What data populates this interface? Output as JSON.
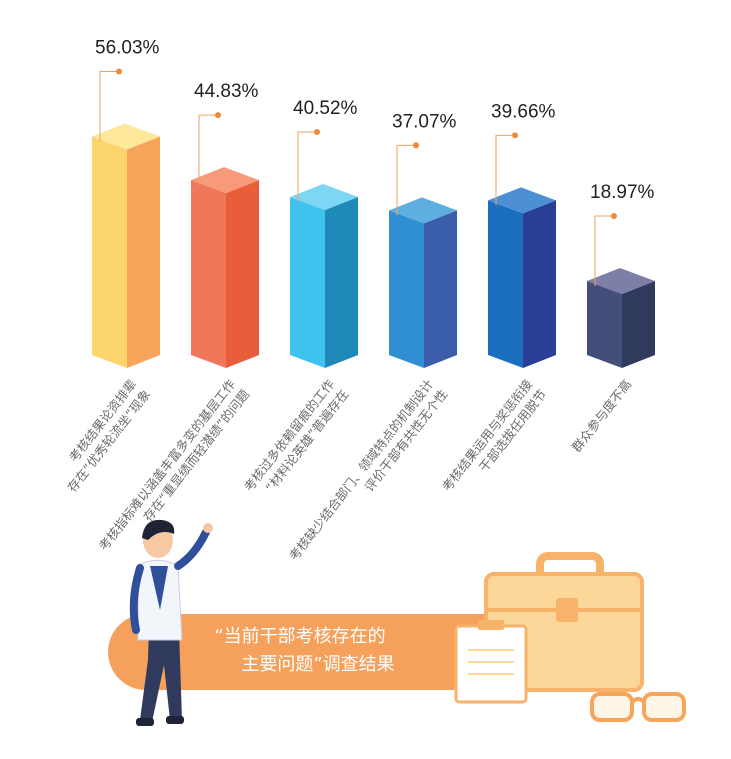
{
  "chart_data": {
    "type": "bar3d",
    "title_lines": [
      "“当前干部考核存在的",
      "主要问题”调查结果"
    ],
    "categories": [
      [
        "考核结果论资排辈",
        "存在“优秀轮流坐”现象"
      ],
      [
        "考核指标难以涵盖丰富多变的基层工作",
        "存在“重显绩而轻潜绩”的问题"
      ],
      [
        "考核过多依赖留痕的工作",
        "“材料论英雄”普遍存在"
      ],
      [
        "考核缺少结合部门、领域特点的机制设计",
        "评价干部有共性无个性"
      ],
      [
        "考核结果运用与奖惩衔接",
        "干部选拔任用脱节"
      ],
      [
        "群众参与度不高"
      ]
    ],
    "values": [
      56.03,
      44.83,
      40.52,
      37.07,
      39.66,
      18.97
    ],
    "value_labels": [
      "56.03%",
      "44.83%",
      "40.52%",
      "37.07%",
      "39.66%",
      "18.97%"
    ],
    "colors": [
      {
        "left": "#fcd46c",
        "right": "#f7a55a",
        "top": "#fde89c"
      },
      {
        "left": "#f1775a",
        "right": "#e95e3a",
        "top": "#f69a7a"
      },
      {
        "left": "#3fc2ee",
        "right": "#1d8ab8",
        "top": "#7cd6f4"
      },
      {
        "left": "#2f8fd0",
        "right": "#3a5eaa",
        "top": "#5faee0"
      },
      {
        "left": "#1b6fc0",
        "right": "#2a3f96",
        "top": "#4c8fd4"
      },
      {
        "left": "#434f7a",
        "right": "#2f3a5c",
        "top": "#7d7fa8"
      }
    ],
    "ylim": [
      0,
      60
    ]
  }
}
